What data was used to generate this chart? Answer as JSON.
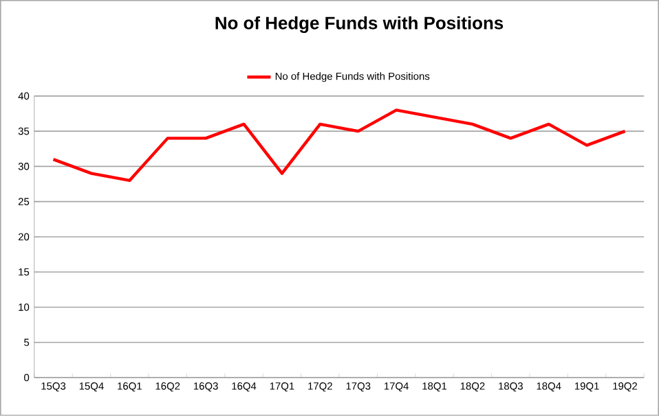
{
  "chart_data": {
    "type": "line",
    "title": "No of Hedge Funds with Positions",
    "categories": [
      "15Q3",
      "15Q4",
      "16Q1",
      "16Q2",
      "16Q3",
      "16Q4",
      "17Q1",
      "17Q2",
      "17Q3",
      "17Q4",
      "18Q1",
      "18Q2",
      "18Q3",
      "18Q4",
      "19Q1",
      "19Q2"
    ],
    "series": [
      {
        "name": "No of Hedge Funds with Positions",
        "color": "#ff0000",
        "values": [
          31,
          29,
          28,
          34,
          34,
          36,
          29,
          36,
          35,
          38,
          37,
          36,
          34,
          36,
          33,
          35
        ]
      }
    ],
    "ylim": [
      0,
      40
    ],
    "yticks": [
      0,
      5,
      10,
      15,
      20,
      25,
      30,
      35,
      40
    ],
    "grid": "y",
    "legend": "top",
    "marker": "none",
    "line_style": "solid"
  }
}
